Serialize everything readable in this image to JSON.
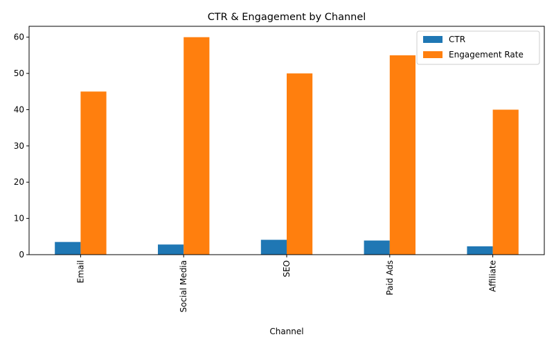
{
  "chart_data": {
    "type": "bar",
    "title": "CTR & Engagement by Channel",
    "xlabel": "Channel",
    "ylabel": "",
    "categories": [
      "Email",
      "Social Media",
      "SEO",
      "Paid Ads",
      "Affiliate"
    ],
    "series": [
      {
        "name": "CTR",
        "values": [
          3.5,
          2.8,
          4.1,
          3.9,
          2.3
        ],
        "color": "#1f77b4"
      },
      {
        "name": "Engagement Rate",
        "values": [
          45,
          60,
          50,
          55,
          40
        ],
        "color": "#ff7f0e"
      }
    ],
    "ylim": [
      0,
      63
    ],
    "yticks": [
      "0",
      "10",
      "20",
      "30",
      "40",
      "50",
      "60"
    ],
    "grid": false,
    "legend_position": "top-right"
  }
}
